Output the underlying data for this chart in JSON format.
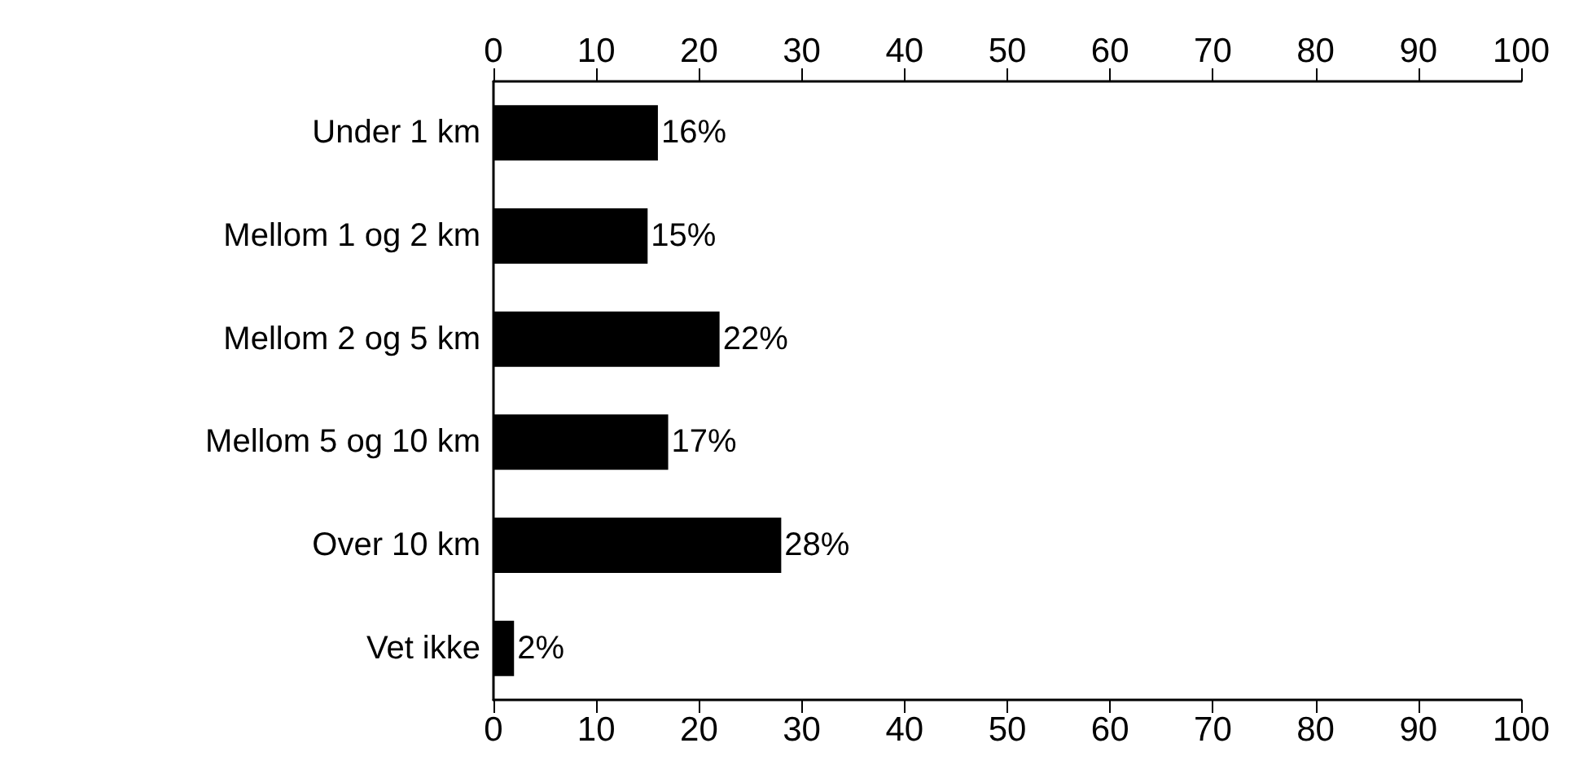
{
  "chart_data": {
    "type": "bar",
    "orientation": "horizontal",
    "categories": [
      "Under 1 km",
      "Mellom 1 og 2 km",
      "Mellom 2 og 5 km",
      "Mellom 5 og 10 km",
      "Over 10 km",
      "Vet ikke"
    ],
    "values": [
      16,
      15,
      22,
      17,
      28,
      2
    ],
    "value_labels": [
      "16%",
      "15%",
      "22%",
      "17%",
      "28%",
      "2%"
    ],
    "color": "#000000",
    "xlim": [
      0,
      100
    ],
    "xticks": [
      0,
      10,
      20,
      30,
      40,
      50,
      60,
      70,
      80,
      90,
      100
    ],
    "x2lim": [
      0,
      100
    ],
    "x2ticks": [
      0,
      10,
      20,
      30,
      40,
      50,
      60,
      70,
      80,
      90,
      100
    ]
  }
}
